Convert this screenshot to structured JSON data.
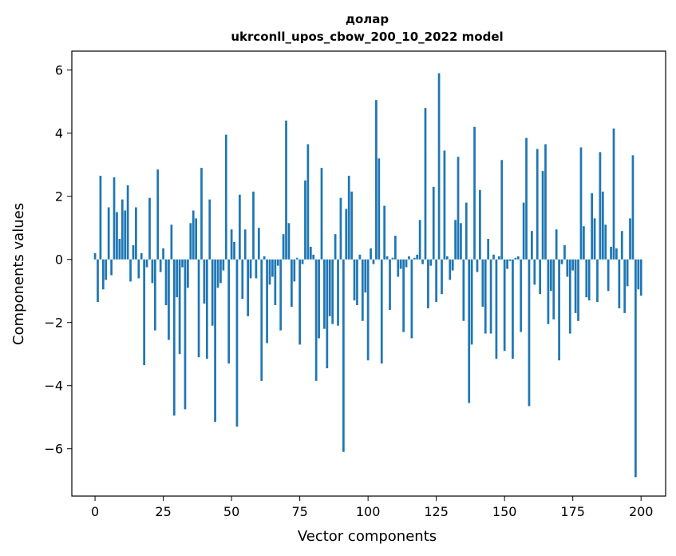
{
  "chart_data": {
    "type": "bar",
    "title": "долар",
    "subtitle": "ukrconll_upos_cbow_200_10_2022 model",
    "xlabel": "Vector components",
    "ylabel": "Components values",
    "xlim": [
      -8.5,
      209
    ],
    "ylim": [
      -7.5,
      6.6
    ],
    "xticks": [
      0,
      25,
      50,
      75,
      100,
      125,
      150,
      175,
      200
    ],
    "yticks": [
      -6,
      -4,
      -2,
      0,
      2,
      4,
      6
    ],
    "xtick_labels": [
      "0",
      "25",
      "50",
      "75",
      "100",
      "125",
      "150",
      "175",
      "200"
    ],
    "ytick_labels": [
      "−6",
      "−4",
      "−2",
      "0",
      "2",
      "4",
      "6"
    ],
    "grid": false,
    "color": "#1f77b4",
    "values": [
      0.2,
      -1.35,
      2.65,
      -0.95,
      -0.65,
      1.65,
      -0.5,
      2.6,
      1.5,
      0.65,
      1.9,
      1.55,
      2.35,
      -0.7,
      0.45,
      1.65,
      -0.6,
      0.2,
      -3.35,
      -0.25,
      1.95,
      -0.75,
      -2.25,
      2.85,
      -0.4,
      0.35,
      -1.45,
      -2.55,
      1.1,
      -4.95,
      -1.2,
      -3.0,
      -0.25,
      -4.75,
      -0.9,
      1.15,
      1.55,
      1.3,
      -3.1,
      2.9,
      -1.4,
      -3.15,
      1.9,
      -2.1,
      -5.15,
      -0.9,
      -0.75,
      -0.35,
      3.95,
      -3.3,
      0.95,
      0.55,
      -5.3,
      2.05,
      -1.25,
      0.95,
      -1.8,
      -0.6,
      2.15,
      -0.6,
      1.0,
      -3.85,
      0.1,
      -2.65,
      -0.8,
      -0.55,
      -1.45,
      -0.2,
      -2.25,
      0.8,
      4.4,
      1.15,
      -1.5,
      -0.7,
      0.05,
      -2.7,
      -0.15,
      2.5,
      3.65,
      0.4,
      0.15,
      -3.85,
      -2.5,
      2.9,
      -2.2,
      -3.45,
      -1.8,
      -2.05,
      0.8,
      -2.1,
      1.95,
      -6.1,
      1.6,
      2.65,
      2.15,
      -1.3,
      -1.45,
      0.15,
      -1.95,
      -1.05,
      -3.2,
      0.35,
      -0.15,
      5.05,
      3.2,
      -3.3,
      1.7,
      0.1,
      -1.6,
      0.05,
      0.75,
      -0.55,
      -0.3,
      -2.3,
      -0.25,
      0.1,
      -2.5,
      0.05,
      0.15,
      1.25,
      -0.15,
      4.8,
      -1.55,
      -0.2,
      2.3,
      -1.35,
      5.9,
      -1.1,
      3.45,
      0.1,
      -0.65,
      -0.35,
      1.25,
      3.25,
      1.15,
      -1.95,
      1.8,
      -4.55,
      -2.7,
      4.2,
      -0.4,
      2.2,
      -1.5,
      -2.35,
      0.65,
      -2.35,
      0.15,
      -3.15,
      0.1,
      3.15,
      -2.9,
      -0.3,
      -0.05,
      -3.15,
      0.05,
      0.1,
      -2.3,
      1.8,
      3.85,
      -4.65,
      0.9,
      -0.8,
      3.5,
      -1.1,
      2.8,
      3.65,
      -2.05,
      -1.0,
      -1.9,
      0.95,
      -3.2,
      -0.15,
      0.45,
      -0.55,
      -2.35,
      -0.35,
      -1.7,
      -1.95,
      3.55,
      1.05,
      -1.2,
      -1.3,
      2.1,
      1.3,
      -1.35,
      3.4,
      2.15,
      1.1,
      -1.0,
      0.4,
      4.15,
      0.35,
      -1.55,
      0.9,
      -1.7,
      -0.85,
      1.3,
      3.3,
      -6.9,
      -0.95,
      -1.15
    ]
  }
}
